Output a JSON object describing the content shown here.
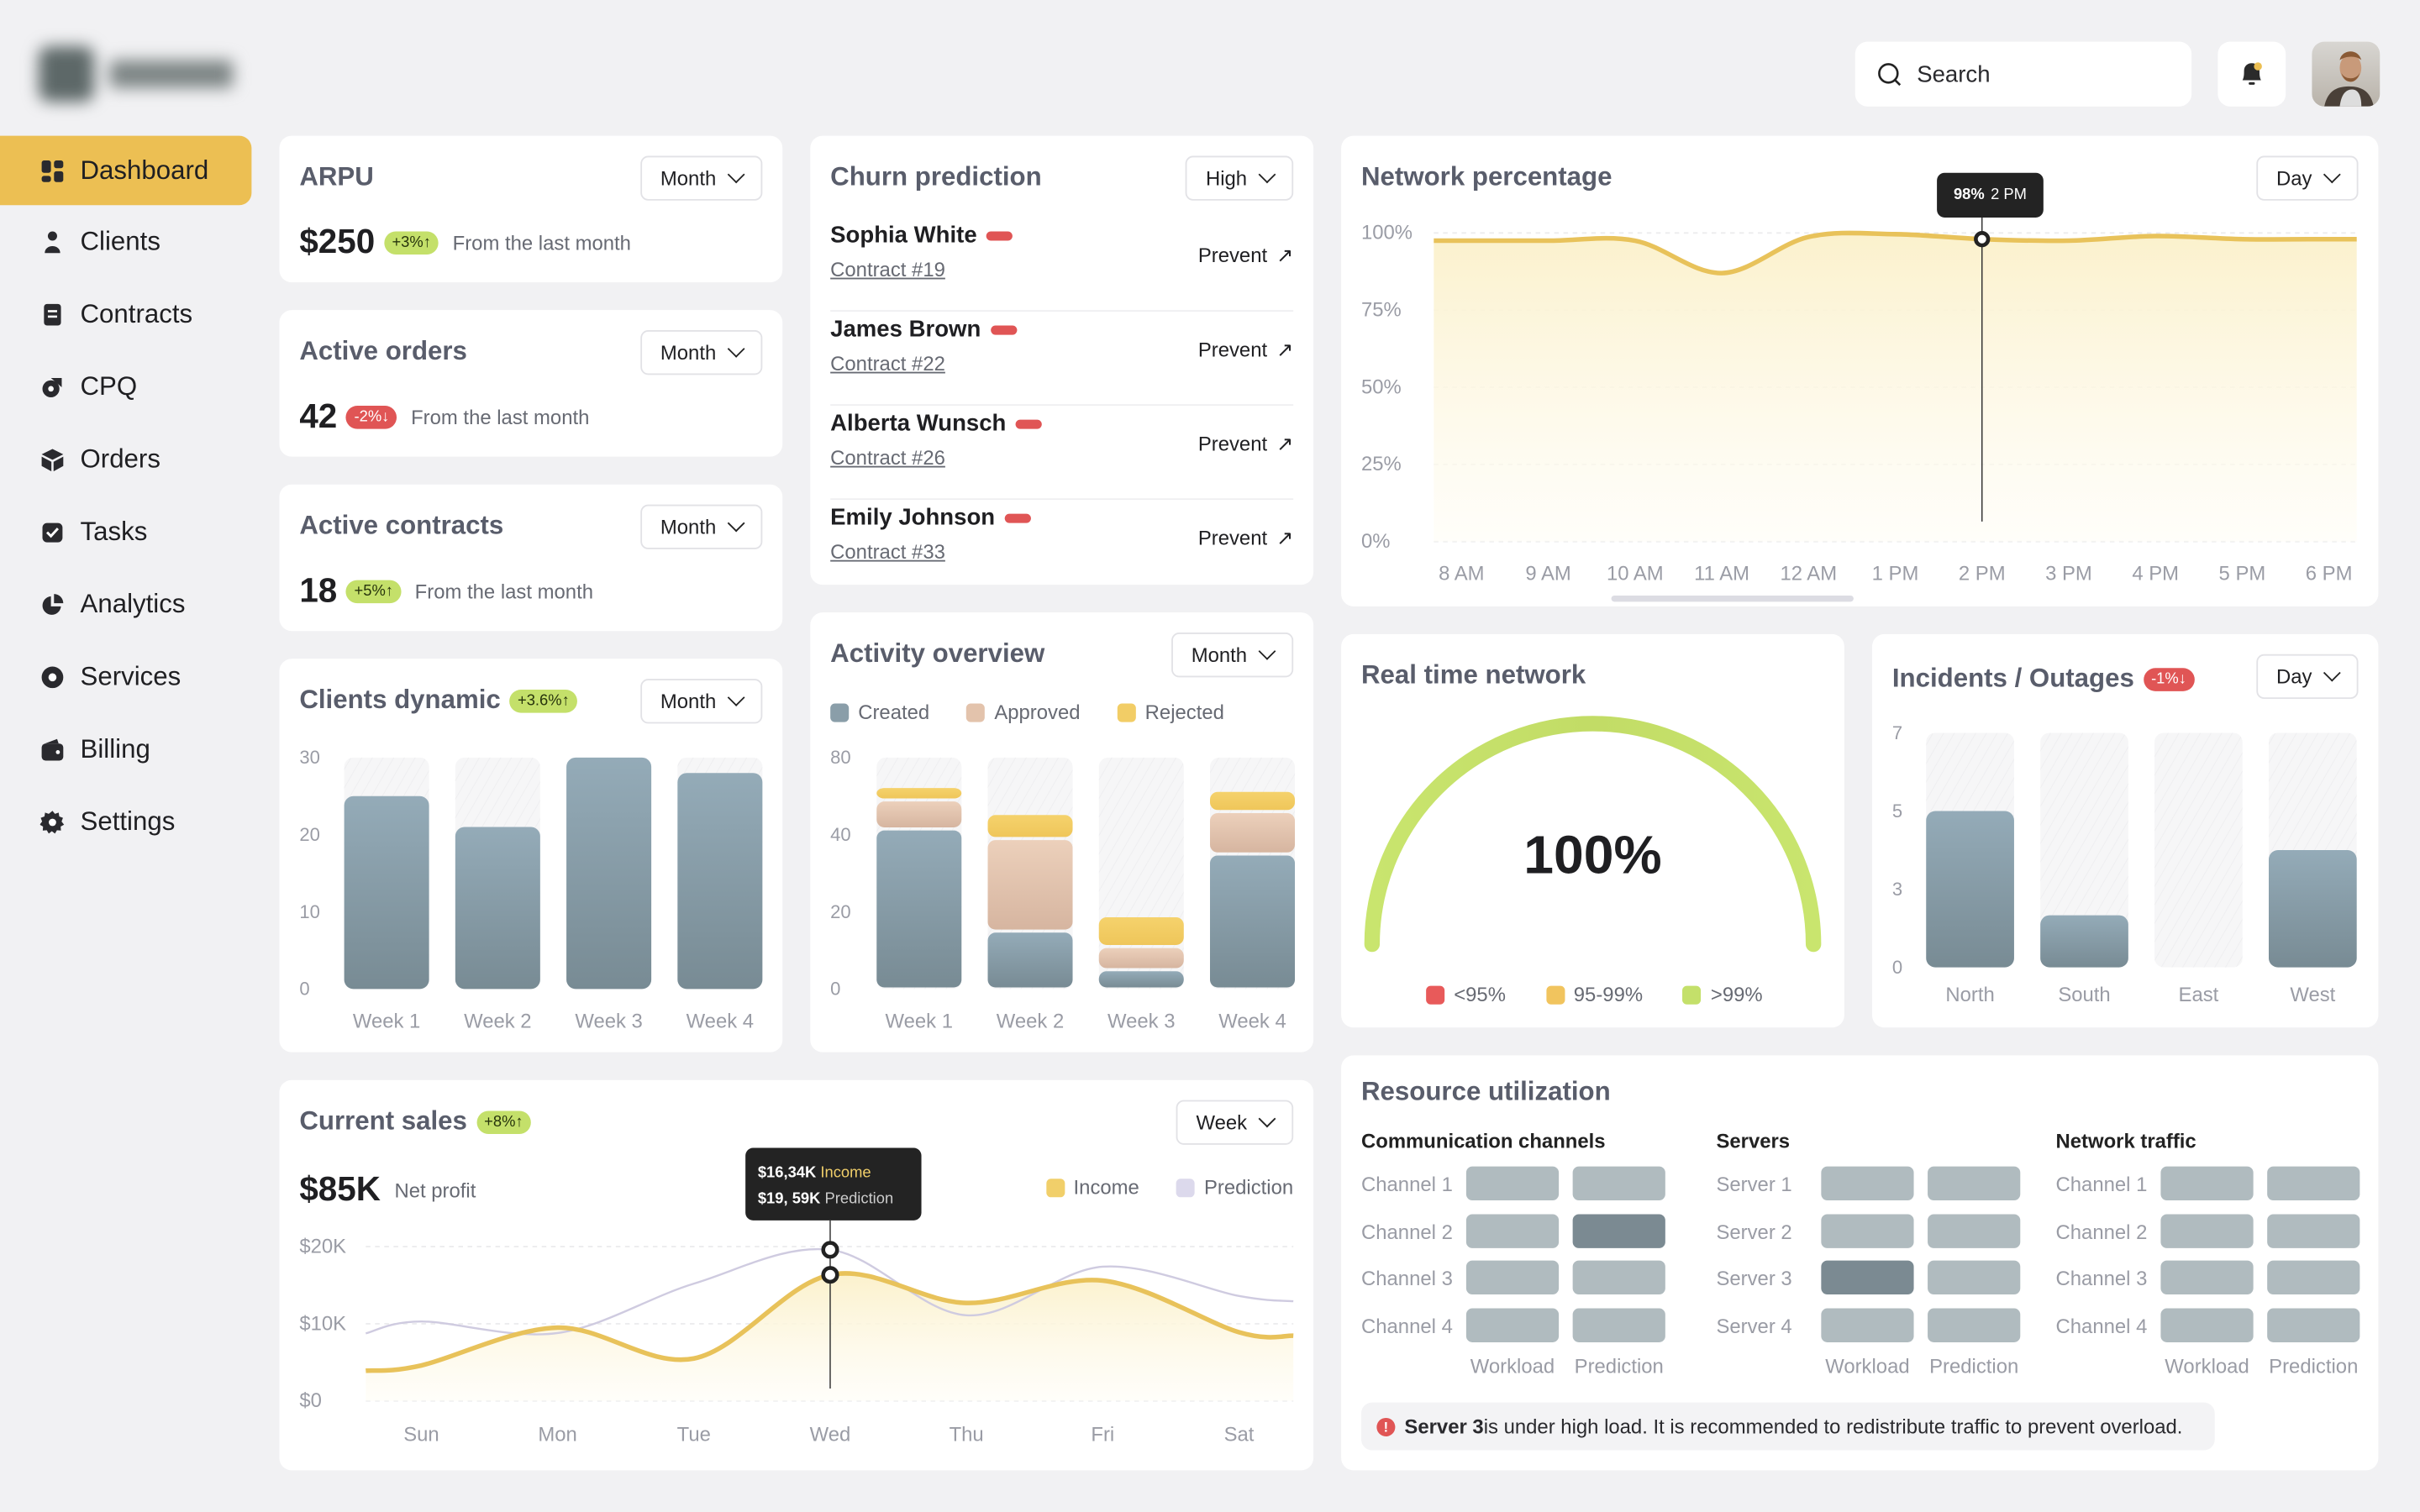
{
  "header": {
    "search_placeholder": "Search"
  },
  "sidebar": {
    "items": [
      {
        "label": "Dashboard",
        "icon": "grid-icon",
        "active": true
      },
      {
        "label": "Clients",
        "icon": "user-icon"
      },
      {
        "label": "Contracts",
        "icon": "document-icon"
      },
      {
        "label": "CPQ",
        "icon": "tag-icon"
      },
      {
        "label": "Orders",
        "icon": "box-icon"
      },
      {
        "label": "Tasks",
        "icon": "checkbox-icon"
      },
      {
        "label": "Analytics",
        "icon": "pie-chart-icon"
      },
      {
        "label": "Services",
        "icon": "service-icon"
      },
      {
        "label": "Billing",
        "icon": "wallet-icon"
      },
      {
        "label": "Settings",
        "icon": "gear-icon"
      }
    ]
  },
  "kpis": [
    {
      "title": "ARPU",
      "period": "Month",
      "value": "$250",
      "badge": "+3%↑",
      "trend": "up",
      "note": "From the last month"
    },
    {
      "title": "Active orders",
      "period": "Month",
      "value": "42",
      "badge": "-2%↓",
      "trend": "down",
      "note": "From the last month"
    },
    {
      "title": "Active contracts",
      "period": "Month",
      "value": "18",
      "badge": "+5%↑",
      "trend": "up",
      "note": "From the last month"
    }
  ],
  "clients_dynamic": {
    "title": "Clients dynamic",
    "badge": "+3.6%↑",
    "period": "Month"
  },
  "churn": {
    "title": "Churn prediction",
    "filter": "High",
    "rows": [
      {
        "name": "Sophia White",
        "contract": "Contract #19",
        "action": "Prevent"
      },
      {
        "name": "James Brown",
        "contract": "Contract #22",
        "action": "Prevent"
      },
      {
        "name": "Alberta Wunsch",
        "contract": "Contract #26",
        "action": "Prevent"
      },
      {
        "name": "Emily Johnson",
        "contract": "Contract #33",
        "action": "Prevent"
      }
    ]
  },
  "activity": {
    "title": "Activity overview",
    "period": "Month"
  },
  "network": {
    "title": "Network percentage",
    "period": "Day",
    "tooltip_value": "98%",
    "tooltip_label": "2 PM"
  },
  "realtime": {
    "title": "Real time network",
    "value": "100%",
    "level": 1.0,
    "legend": [
      {
        "label": "<95%",
        "color": "#e85a5a"
      },
      {
        "label": "95-99%",
        "color": "#f1c45e"
      },
      {
        "label": ">99%",
        "color": "#c4e06a"
      }
    ]
  },
  "incidents": {
    "title": "Incidents / Outages",
    "badge": "-1%↓",
    "period": "Day"
  },
  "sales": {
    "title": "Current sales",
    "badge": "+8%↑",
    "period": "Week",
    "value": "$85K",
    "value_label": "Net profit",
    "tooltip": {
      "income": "$16,34K",
      "income_label": "Income",
      "prediction": "$19, 59K",
      "prediction_label": "Prediction"
    }
  },
  "resource": {
    "title": "Resource utilization",
    "column_labels": [
      "Workload",
      "Prediction"
    ],
    "groups": [
      {
        "title": "Communication channels",
        "rows": [
          {
            "label": "Channel 1",
            "workload": "normal",
            "prediction": "normal"
          },
          {
            "label": "Channel 2",
            "workload": "normal",
            "prediction": "high"
          },
          {
            "label": "Channel 3",
            "workload": "normal",
            "prediction": "normal"
          },
          {
            "label": "Channel 4",
            "workload": "normal",
            "prediction": "normal"
          }
        ]
      },
      {
        "title": "Servers",
        "rows": [
          {
            "label": "Server 1",
            "workload": "normal",
            "prediction": "normal"
          },
          {
            "label": "Server 2",
            "workload": "normal",
            "prediction": "normal"
          },
          {
            "label": "Server 3",
            "workload": "high",
            "prediction": "normal"
          },
          {
            "label": "Server 4",
            "workload": "normal",
            "prediction": "normal"
          }
        ]
      },
      {
        "title": "Network traffic",
        "rows": [
          {
            "label": "Channel 1",
            "workload": "normal",
            "prediction": "normal"
          },
          {
            "label": "Channel 2",
            "workload": "normal",
            "prediction": "normal"
          },
          {
            "label": "Channel 3",
            "workload": "normal",
            "prediction": "normal"
          },
          {
            "label": "Channel 4",
            "workload": "normal",
            "prediction": "normal"
          }
        ]
      }
    ],
    "alert_bold": "Server 3",
    "alert_text": " is under high load. It is recommended to redistribute traffic to prevent overload."
  },
  "colors": {
    "accent": "#ecbf53",
    "bar": "#8a9ea9",
    "positive": "#c4e06a",
    "negative": "#e05555",
    "income": "#e8c25a",
    "prediction": "#cfcbe0",
    "approved": "#e3c3ac",
    "rejected": "#f2cd66",
    "load_normal": "#b0bbbf",
    "load_high": "#7b8a92"
  },
  "chart_data": [
    {
      "type": "bar",
      "categories": [
        "Week 1",
        "Week 2",
        "Week 3",
        "Week 4"
      ],
      "values": [
        25,
        21,
        30,
        28
      ],
      "y_ticks": [
        0,
        10,
        20,
        30
      ],
      "ylim": [
        0,
        30
      ]
    },
    {
      "type": "bar",
      "stacked": true,
      "categories": [
        "Week 1",
        "Week 2",
        "Week 3",
        "Week 4"
      ],
      "y_ticks": [
        0,
        20,
        40,
        80
      ],
      "series": [
        {
          "name": "Created",
          "values": [
            43,
            15,
            5,
            35
          ],
          "color": "#8a9ea9"
        },
        {
          "name": "Approved",
          "values": [
            15,
            24,
            6,
            17
          ],
          "color": "#e3c3ac"
        },
        {
          "name": "Rejected",
          "values": [
            7,
            12,
            8,
            11
          ],
          "color": "#f2cd66"
        }
      ]
    },
    {
      "type": "area",
      "categories": [
        "8 AM",
        "9 AM",
        "10 AM",
        "11 AM",
        "12 AM",
        "1 PM",
        "2 PM",
        "3 PM",
        "4 PM",
        "5 PM",
        "6 PM"
      ],
      "values": [
        97.5,
        97.5,
        97.5,
        87,
        98.7,
        99.6,
        98,
        97.5,
        99,
        98,
        98
      ],
      "y_ticks": [
        "0%",
        "25%",
        "50%",
        "75%",
        "100%"
      ],
      "ylim": [
        0,
        100
      ],
      "grid": true,
      "highlight": "2 PM"
    },
    {
      "type": "bar",
      "categories": [
        "North",
        "South",
        "East",
        "West"
      ],
      "values": [
        5,
        2,
        0,
        4
      ],
      "y_ticks": [
        0,
        3,
        5,
        7
      ]
    },
    {
      "type": "line",
      "categories": [
        "Sun",
        "Mon",
        "Tue",
        "Wed",
        "Thu",
        "Fri",
        "Sat"
      ],
      "y_ticks": [
        "$0",
        "$10K",
        "$20K"
      ],
      "ylim": [
        0,
        20
      ],
      "grid": true,
      "legend": "top-right",
      "series": [
        {
          "name": "Income",
          "values": [
            4.6,
            9.5,
            5.5,
            16.34,
            12.7,
            15.6,
            8.9
          ],
          "color": "#e8c25a"
        },
        {
          "name": "Prediction",
          "values": [
            10.3,
            8.8,
            15.2,
            19.59,
            11.1,
            17.4,
            13.6
          ],
          "color": "#cfcbe0"
        }
      ],
      "highlight": "Wed"
    }
  ]
}
